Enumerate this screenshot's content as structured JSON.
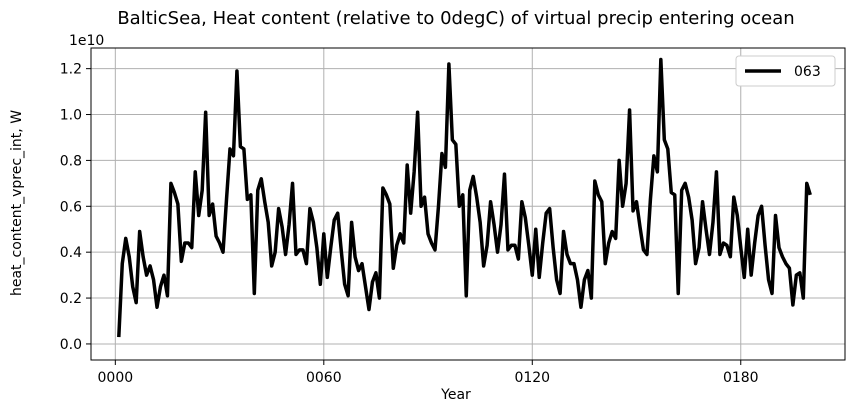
{
  "chart_data": {
    "type": "line",
    "title": "BalticSea, Heat content (relative to 0degC) of virtual precip entering ocean",
    "xlabel": "Year",
    "ylabel": "heat_content_vprec_int, W",
    "offset_text": "1e10",
    "xlim": [
      -7,
      210
    ],
    "ylim": [
      -0.07,
      1.29
    ],
    "x_ticks": [
      0,
      60,
      120,
      180
    ],
    "x_tick_labels": [
      "0000",
      "0060",
      "0120",
      "0180"
    ],
    "y_ticks": [
      0.0,
      0.2,
      0.4,
      0.6,
      0.8,
      1.0,
      1.2
    ],
    "y_tick_labels": [
      "0.0",
      "0.2",
      "0.4",
      "0.6",
      "0.8",
      "1.0",
      "1.2"
    ],
    "grid": true,
    "legend_position": "top-right",
    "series": [
      {
        "name": "063",
        "color": "#000000",
        "x": [
          1,
          2,
          3,
          4,
          5,
          6,
          7,
          8,
          9,
          10,
          11,
          12,
          13,
          14,
          15,
          16,
          17,
          18,
          19,
          20,
          21,
          22,
          23,
          24,
          25,
          26,
          27,
          28,
          29,
          30,
          31,
          32,
          33,
          34,
          35,
          36,
          37,
          38,
          39,
          40,
          41,
          42,
          43,
          44,
          45,
          46,
          47,
          48,
          49,
          50,
          51,
          52,
          53,
          54,
          55,
          56,
          57,
          58,
          59,
          60,
          61,
          62,
          63,
          64,
          65,
          66,
          67,
          68,
          69,
          70,
          71,
          72,
          73,
          74,
          75,
          76,
          77,
          78,
          79,
          80,
          81,
          82,
          83,
          84,
          85,
          86,
          87,
          88,
          89,
          90,
          91,
          92,
          93,
          94,
          95,
          96,
          97,
          98,
          99,
          100,
          101,
          102,
          103,
          104,
          105,
          106,
          107,
          108,
          109,
          110,
          111,
          112,
          113,
          114,
          115,
          116,
          117,
          118,
          119,
          120,
          121,
          122,
          123,
          124,
          125,
          126,
          127,
          128,
          129,
          130,
          131,
          132,
          133,
          134,
          135,
          136,
          137,
          138,
          139,
          140,
          141,
          142,
          143,
          144,
          145,
          146,
          147,
          148,
          149,
          150,
          151,
          152,
          153,
          154,
          155,
          156,
          157,
          158,
          159,
          160,
          161,
          162,
          163,
          164,
          165,
          166,
          167,
          168,
          169,
          170,
          171,
          172,
          173,
          174,
          175,
          176,
          177,
          178,
          179,
          180,
          181,
          182,
          183,
          184,
          185,
          186,
          187,
          188,
          189,
          190,
          191,
          192,
          193,
          194,
          195,
          196,
          197,
          198,
          199,
          200
        ],
        "values": [
          0.03,
          0.35,
          0.46,
          0.38,
          0.25,
          0.18,
          0.49,
          0.38,
          0.3,
          0.34,
          0.28,
          0.16,
          0.25,
          0.3,
          0.21,
          0.7,
          0.66,
          0.61,
          0.36,
          0.44,
          0.44,
          0.42,
          0.75,
          0.56,
          0.67,
          1.01,
          0.56,
          0.61,
          0.47,
          0.44,
          0.4,
          0.63,
          0.85,
          0.82,
          1.19,
          0.86,
          0.85,
          0.63,
          0.65,
          0.22,
          0.67,
          0.72,
          0.62,
          0.53,
          0.34,
          0.4,
          0.59,
          0.51,
          0.39,
          0.52,
          0.7,
          0.39,
          0.41,
          0.41,
          0.35,
          0.59,
          0.53,
          0.42,
          0.26,
          0.48,
          0.29,
          0.42,
          0.54,
          0.57,
          0.41,
          0.26,
          0.21,
          0.53,
          0.38,
          0.32,
          0.35,
          0.25,
          0.15,
          0.27,
          0.31,
          0.2,
          0.68,
          0.65,
          0.61,
          0.33,
          0.43,
          0.48,
          0.44,
          0.78,
          0.57,
          0.75,
          1.01,
          0.6,
          0.64,
          0.48,
          0.44,
          0.41,
          0.6,
          0.83,
          0.77,
          1.22,
          0.89,
          0.87,
          0.6,
          0.65,
          0.21,
          0.67,
          0.73,
          0.64,
          0.53,
          0.34,
          0.43,
          0.62,
          0.52,
          0.4,
          0.52,
          0.74,
          0.41,
          0.43,
          0.43,
          0.37,
          0.62,
          0.55,
          0.43,
          0.3,
          0.5,
          0.29,
          0.44,
          0.57,
          0.59,
          0.42,
          0.28,
          0.22,
          0.49,
          0.39,
          0.35,
          0.35,
          0.28,
          0.16,
          0.28,
          0.32,
          0.2,
          0.71,
          0.65,
          0.62,
          0.35,
          0.44,
          0.49,
          0.46,
          0.8,
          0.6,
          0.7,
          1.02,
          0.58,
          0.62,
          0.51,
          0.41,
          0.39,
          0.63,
          0.82,
          0.75,
          1.24,
          0.89,
          0.85,
          0.66,
          0.65,
          0.22,
          0.67,
          0.7,
          0.64,
          0.54,
          0.35,
          0.42,
          0.62,
          0.5,
          0.39,
          0.53,
          0.75,
          0.39,
          0.44,
          0.43,
          0.38,
          0.64,
          0.56,
          0.42,
          0.29,
          0.5,
          0.3,
          0.44,
          0.56,
          0.6,
          0.43,
          0.28,
          0.22,
          0.56,
          0.42,
          0.38,
          0.35,
          0.33,
          0.17,
          0.3,
          0.31,
          0.2,
          0.7,
          0.65
        ]
      }
    ]
  }
}
